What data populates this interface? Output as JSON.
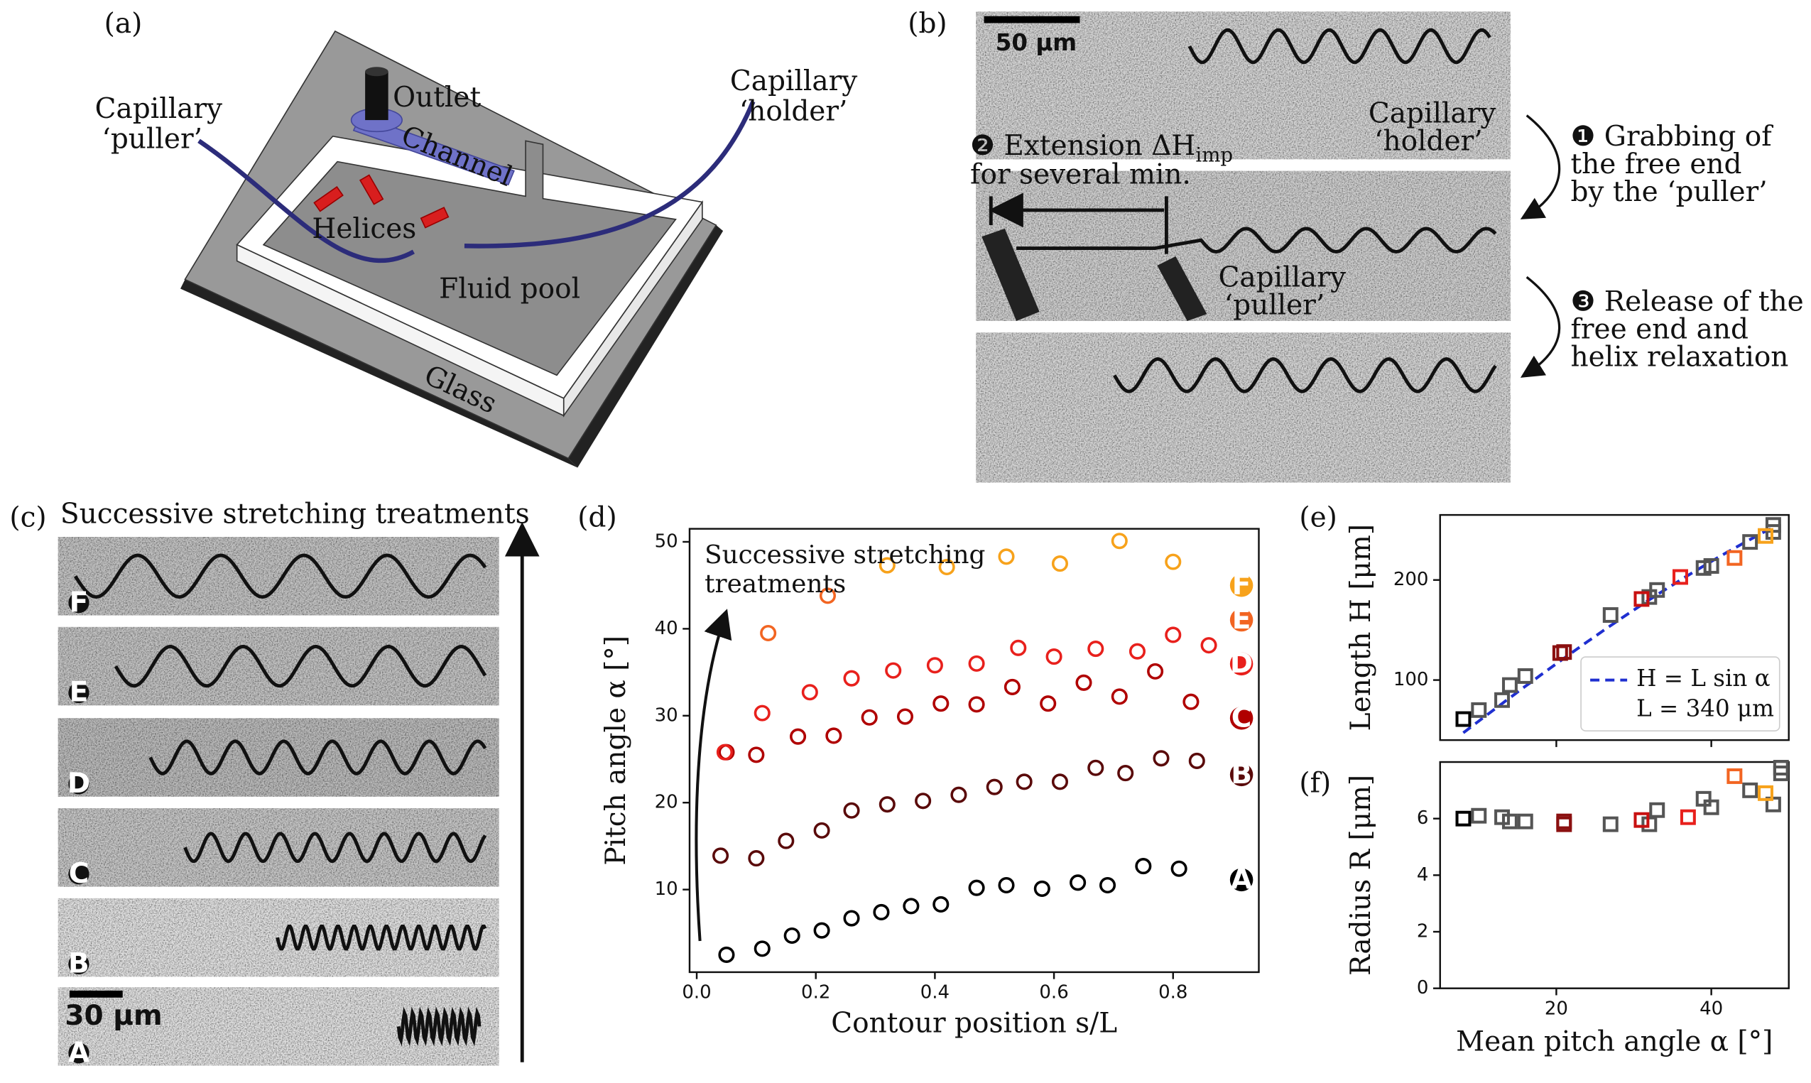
{
  "panel_a": {
    "label": "(a)",
    "outlet": "Outlet",
    "channel": "Channel",
    "puller": [
      "Capillary",
      "‘puller’"
    ],
    "holder": [
      "Capillary",
      "‘holder’"
    ],
    "helices": "Helices",
    "pool": "Fluid pool",
    "glass": "Glass"
  },
  "panel_b": {
    "label": "(b)",
    "scale": "50 μm",
    "holder": [
      "Capillary",
      "‘holder’"
    ],
    "puller": [
      "Capillary",
      "‘puller’"
    ],
    "step1": [
      "❶ Grabbing of",
      "the free end",
      "by the ‘puller’"
    ],
    "step2": {
      "main": "❷ Extension ΔH",
      "sub": "imp",
      "line2": "for several min."
    },
    "step3": [
      "❸ Release of the",
      "free end and",
      "helix relaxation"
    ]
  },
  "panel_c": {
    "label": "(c)",
    "title": "Successive stretching treatments",
    "scale": "30 μm"
  },
  "chart_data": [
    {
      "type": "scatter",
      "panel": "(d)",
      "marker": "circle",
      "xlabel": "Contour position s/L",
      "ylabel": "Pitch angle α [°]",
      "annotation": [
        "Successive stretching",
        "treatments"
      ],
      "xlim": [
        -0.012,
        0.944
      ],
      "ylim": [
        0.5,
        51.5
      ],
      "xticks": [
        {
          "value": 0,
          "label": "0.0"
        },
        0.2,
        0.4,
        0.6,
        0.8
      ],
      "yticks": [
        10,
        20,
        30,
        40,
        50
      ],
      "series": [
        {
          "name": "A",
          "color": "#000000",
          "x": [
            0.05,
            0.11,
            0.16,
            0.21,
            0.26,
            0.31,
            0.36,
            0.41,
            0.47,
            0.52,
            0.58,
            0.64,
            0.69,
            0.75,
            0.81
          ],
          "values": [
            2.5,
            3.2,
            4.7,
            5.3,
            6.7,
            7.4,
            8.1,
            8.3,
            10.2,
            10.5,
            10.1,
            10.8,
            10.5,
            12.7,
            12.4
          ]
        },
        {
          "name": "B",
          "color": "#5a0a0a",
          "x": [
            0.04,
            0.1,
            0.15,
            0.21,
            0.26,
            0.32,
            0.38,
            0.44,
            0.5,
            0.55,
            0.61,
            0.67,
            0.72,
            0.78,
            0.84
          ],
          "values": [
            13.9,
            13.6,
            15.6,
            16.8,
            19.1,
            19.8,
            20.2,
            20.9,
            21.8,
            22.4,
            22.4,
            24.0,
            23.4,
            25.1,
            24.8
          ]
        },
        {
          "name": "C",
          "color": "#b00000",
          "x": [
            0.05,
            0.1,
            0.17,
            0.23,
            0.29,
            0.35,
            0.41,
            0.47,
            0.53,
            0.59,
            0.65,
            0.71,
            0.77,
            0.83
          ],
          "values": [
            25.8,
            25.5,
            27.6,
            27.7,
            29.8,
            29.9,
            31.4,
            31.3,
            33.3,
            31.4,
            33.8,
            32.2,
            35.1,
            31.6
          ]
        },
        {
          "name": "D",
          "color": "#e8201c",
          "x": [
            0.047,
            0.11,
            0.19,
            0.26,
            0.33,
            0.4,
            0.47,
            0.54,
            0.6,
            0.67,
            0.74,
            0.8,
            0.86
          ],
          "values": [
            25.8,
            30.3,
            32.7,
            34.3,
            35.2,
            35.8,
            36.0,
            37.8,
            36.8,
            37.7,
            37.4,
            39.3,
            38.1
          ]
        },
        {
          "name": "E",
          "color": "#f26522",
          "x": [
            0.12,
            0.22
          ],
          "values": [
            39.5,
            43.8
          ]
        },
        {
          "name": "F",
          "color": "#f7a21b",
          "x": [
            0.32,
            0.42,
            0.52,
            0.61,
            0.71,
            0.8
          ],
          "values": [
            47.3,
            47.1,
            48.3,
            47.5,
            50.1,
            47.7
          ]
        }
      ]
    },
    {
      "type": "scatter",
      "panel": "(e)",
      "marker": "square",
      "ylabel": "Length H [μm]",
      "xlim": [
        5,
        50
      ],
      "ylim": [
        40,
        265
      ],
      "xticks": [
        20,
        40
      ],
      "xtick_labels": false,
      "yticks": [
        100,
        200
      ],
      "legend": "lower right",
      "fit": {
        "label": "H = L sin α",
        "param_label": "L = 340 μm",
        "L": 340,
        "color": "#1f2fd0"
      },
      "series": [
        {
          "color": "#000000",
          "x": [
            8
          ],
          "values": [
            61
          ]
        },
        {
          "color": "#555555",
          "x": [
            10,
            13,
            14,
            16,
            27,
            32,
            33,
            39,
            40,
            45,
            48,
            48
          ],
          "values": [
            70,
            80,
            95,
            104,
            165,
            183,
            190,
            212,
            214,
            238,
            255,
            248
          ]
        },
        {
          "color": "#8b1010",
          "x": [
            21,
            20.5
          ],
          "values": [
            128,
            127
          ]
        },
        {
          "color": "#c81010",
          "x": [
            31
          ],
          "values": [
            181
          ]
        },
        {
          "color": "#e8201c",
          "x": [
            36
          ],
          "values": [
            203
          ]
        },
        {
          "color": "#f26522",
          "x": [
            43
          ],
          "values": [
            222
          ]
        },
        {
          "color": "#f7a21b",
          "x": [
            47
          ],
          "values": [
            244
          ]
        }
      ]
    },
    {
      "type": "scatter",
      "panel": "(f)",
      "marker": "square",
      "ylabel": "Radius R [μm]",
      "xlabel": "Mean pitch angle α [°]",
      "xlim": [
        5,
        50
      ],
      "ylim": [
        0,
        8
      ],
      "xticks": [
        20,
        40
      ],
      "yticks": [
        0,
        2,
        4,
        6
      ],
      "series": [
        {
          "color": "#000000",
          "x": [
            8
          ],
          "values": [
            6.0
          ]
        },
        {
          "color": "#555555",
          "x": [
            10,
            13,
            14,
            16,
            27,
            32,
            33,
            39,
            40,
            45,
            48,
            49,
            49
          ],
          "values": [
            6.1,
            6.05,
            5.9,
            5.9,
            5.8,
            5.8,
            6.3,
            6.7,
            6.4,
            7.0,
            6.5,
            7.6,
            7.8
          ]
        },
        {
          "color": "#8b1010",
          "x": [
            21,
            21
          ],
          "values": [
            5.9,
            5.8
          ]
        },
        {
          "color": "#c81010",
          "x": [
            31
          ],
          "values": [
            5.95
          ]
        },
        {
          "color": "#e8201c",
          "x": [
            37
          ],
          "values": [
            6.05
          ]
        },
        {
          "color": "#f26522",
          "x": [
            43
          ],
          "values": [
            7.5
          ]
        },
        {
          "color": "#f7a21b",
          "x": [
            47
          ],
          "values": [
            6.9
          ]
        }
      ]
    }
  ]
}
